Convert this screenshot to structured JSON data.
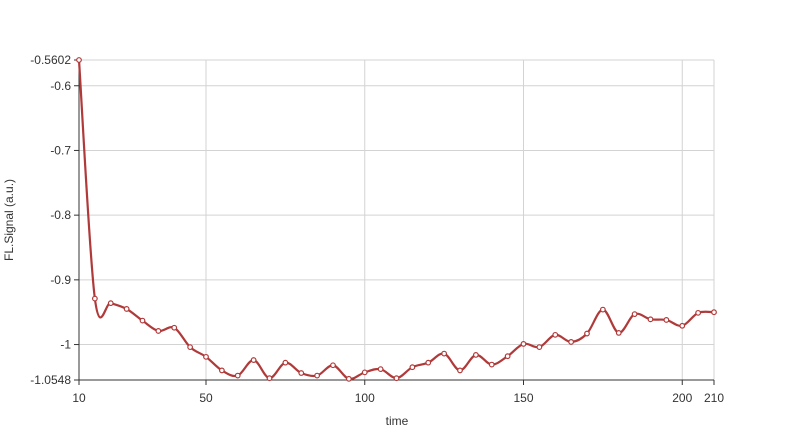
{
  "chart_data": {
    "type": "line",
    "xlabel": "time",
    "ylabel": "FL.Signal (a.u.)",
    "xlim": [
      10,
      210
    ],
    "ylim": [
      -1.0548,
      -0.5602
    ],
    "x_ticks": [
      10,
      50,
      100,
      150,
      200,
      210
    ],
    "y_ticks": [
      -0.5602,
      -0.6,
      -0.7,
      -0.8,
      -0.9,
      -1,
      -1.0548
    ],
    "y_tick_labels": [
      "-0.5602",
      "-0.6",
      "-0.7",
      "-0.8",
      "-0.9",
      "-1",
      "-1.0548"
    ],
    "grid": true,
    "colors": {
      "line": "#b03a3a",
      "marker_fill": "#ffffff",
      "grid": "#d3d3d3",
      "axis": "#333333"
    },
    "series": [
      {
        "x": [
          10,
          15,
          20,
          25,
          30,
          35,
          40,
          45,
          50,
          55,
          60,
          65,
          70,
          75,
          80,
          85,
          90,
          95,
          100,
          105,
          110,
          115,
          120,
          125,
          130,
          135,
          140,
          145,
          150,
          155,
          160,
          165,
          170,
          175,
          180,
          185,
          190,
          195,
          200,
          205,
          210
        ],
        "y": [
          -0.5602,
          -0.929,
          -0.936,
          -0.945,
          -0.963,
          -0.979,
          -0.974,
          -1.004,
          -1.019,
          -1.04,
          -1.048,
          -1.024,
          -1.052,
          -1.028,
          -1.044,
          -1.048,
          -1.032,
          -1.053,
          -1.043,
          -1.038,
          -1.052,
          -1.035,
          -1.028,
          -1.014,
          -1.04,
          -1.016,
          -1.031,
          -1.018,
          -0.999,
          -1.004,
          -0.985,
          -0.996,
          -0.983,
          -0.946,
          -0.982,
          -0.953,
          -0.961,
          -0.962,
          -0.971,
          -0.951,
          -0.95
        ]
      }
    ]
  }
}
